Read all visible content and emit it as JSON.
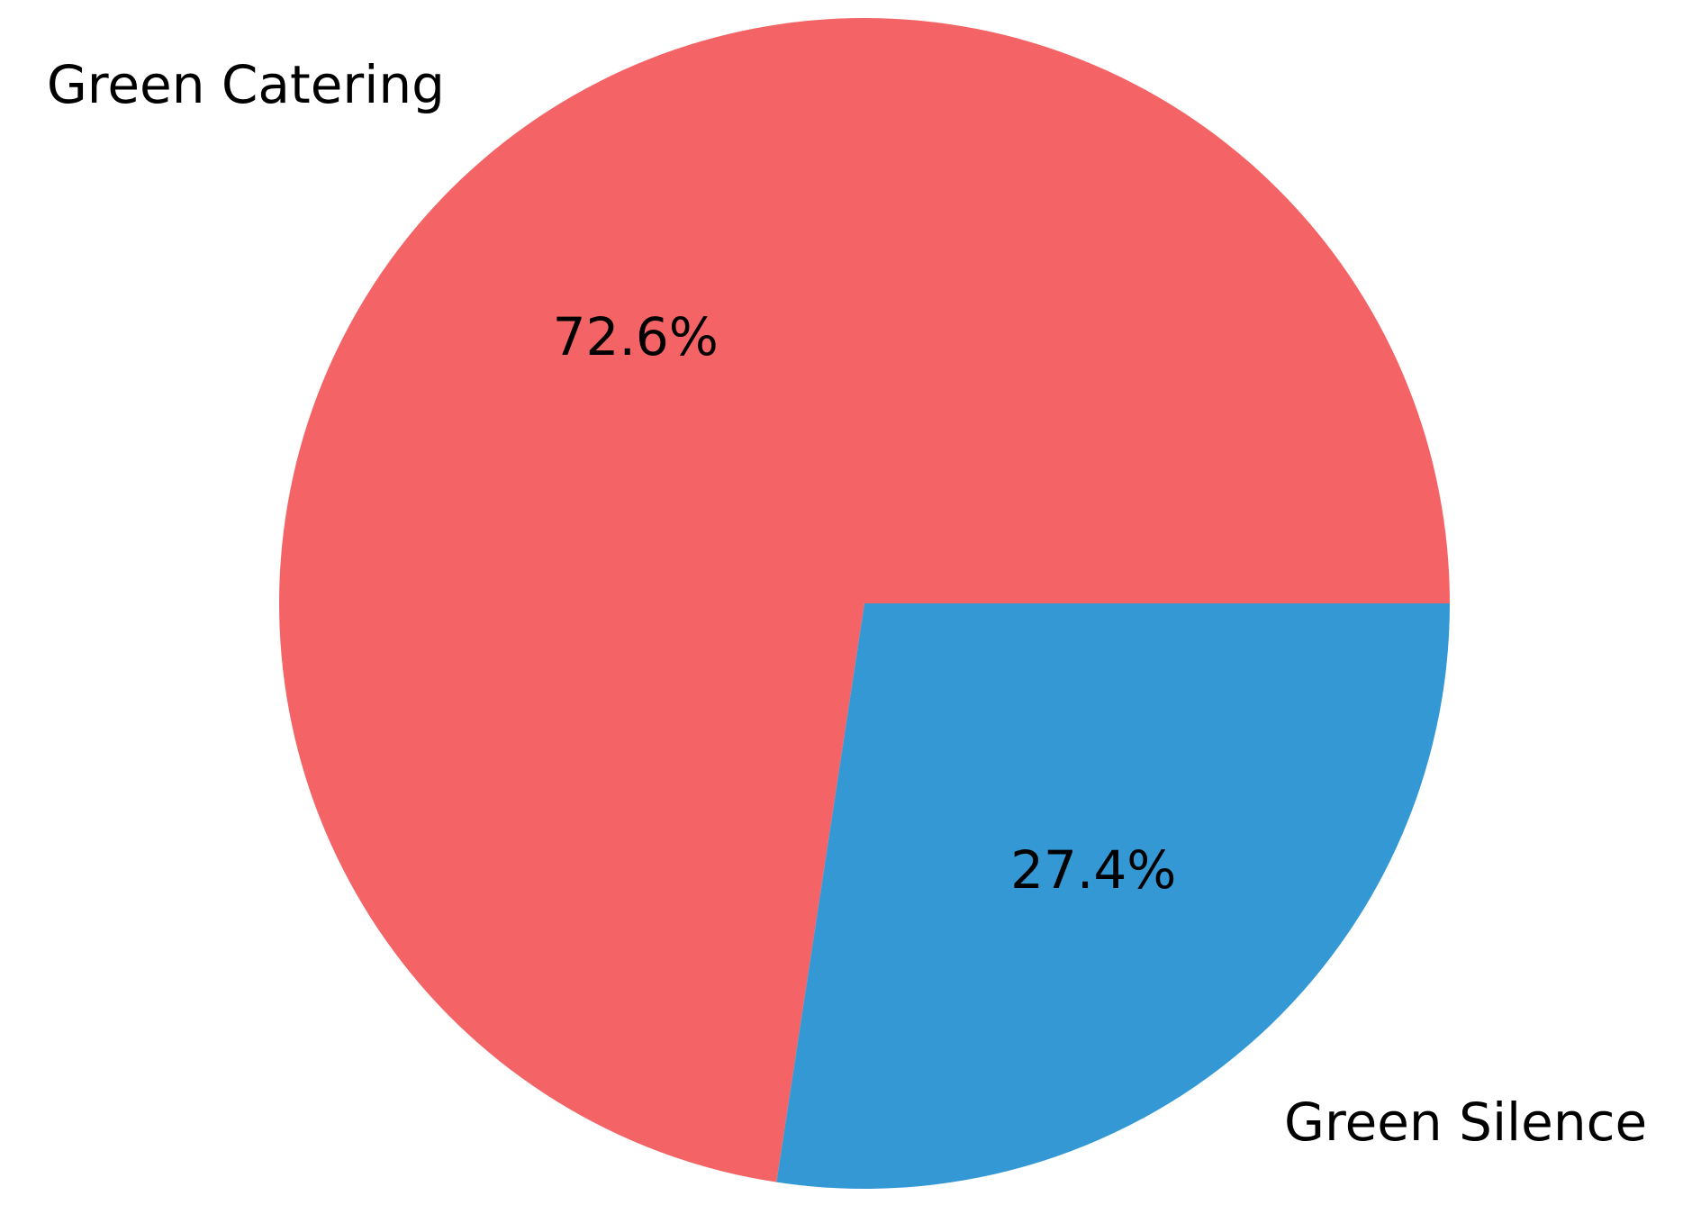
{
  "chart_data": {
    "type": "pie",
    "title": "",
    "slices": [
      {
        "label": "Green Catering",
        "value": 72.6,
        "display": "72.6%",
        "color": "#f46466"
      },
      {
        "label": "Green Silence",
        "value": 27.4,
        "display": "27.4%",
        "color": "#3498d5"
      }
    ],
    "start_angle": "0 degrees (3 o'clock), counter-clockwise",
    "legend": "none",
    "label_style": "slice labels outside, percentages inside"
  }
}
